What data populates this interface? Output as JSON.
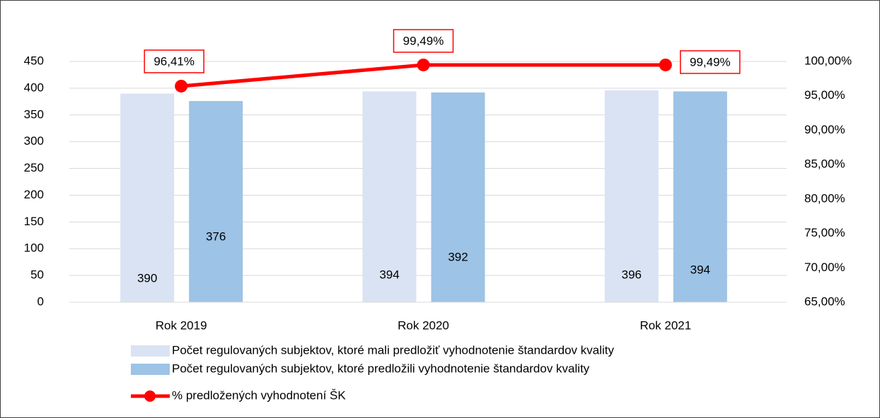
{
  "chart_data": {
    "type": "bar",
    "categories": [
      "Rok 2019",
      "Rok 2020",
      "Rok 2021"
    ],
    "series": [
      {
        "name": "Počet regulovaných subjektov, ktoré mali predložiť vyhodnotenie štandardov kvality",
        "color": "#dae3f3",
        "values": [
          390,
          394,
          396
        ]
      },
      {
        "name": "Počet regulovaných subjektov, ktoré predložili vyhodnotenie štandardov kvality",
        "color": "#9dc3e6",
        "values": [
          376,
          392,
          394
        ]
      },
      {
        "name": "% predložených vyhodnotení ŠK",
        "type": "line",
        "axis": "y2",
        "color": "#ff0000",
        "values": [
          96.41,
          99.49,
          99.49
        ],
        "value_labels": [
          "96,41%",
          "99,49%",
          "99,49%"
        ]
      }
    ],
    "ylim": [
      0,
      450
    ],
    "yticks": [
      0,
      50,
      100,
      150,
      200,
      250,
      300,
      350,
      400,
      450
    ],
    "y2lim": [
      65,
      100
    ],
    "y2ticks": [
      {
        "value": 65,
        "label": "65,00%"
      },
      {
        "value": 70,
        "label": "70,00%"
      },
      {
        "value": 75,
        "label": "75,00%"
      },
      {
        "value": 80,
        "label": "80,00%"
      },
      {
        "value": 85,
        "label": "85,00%"
      },
      {
        "value": 90,
        "label": "90,00%"
      },
      {
        "value": 95,
        "label": "95,00%"
      },
      {
        "value": 100,
        "label": "100,00%"
      }
    ],
    "grid": true,
    "legend": "bottom"
  }
}
